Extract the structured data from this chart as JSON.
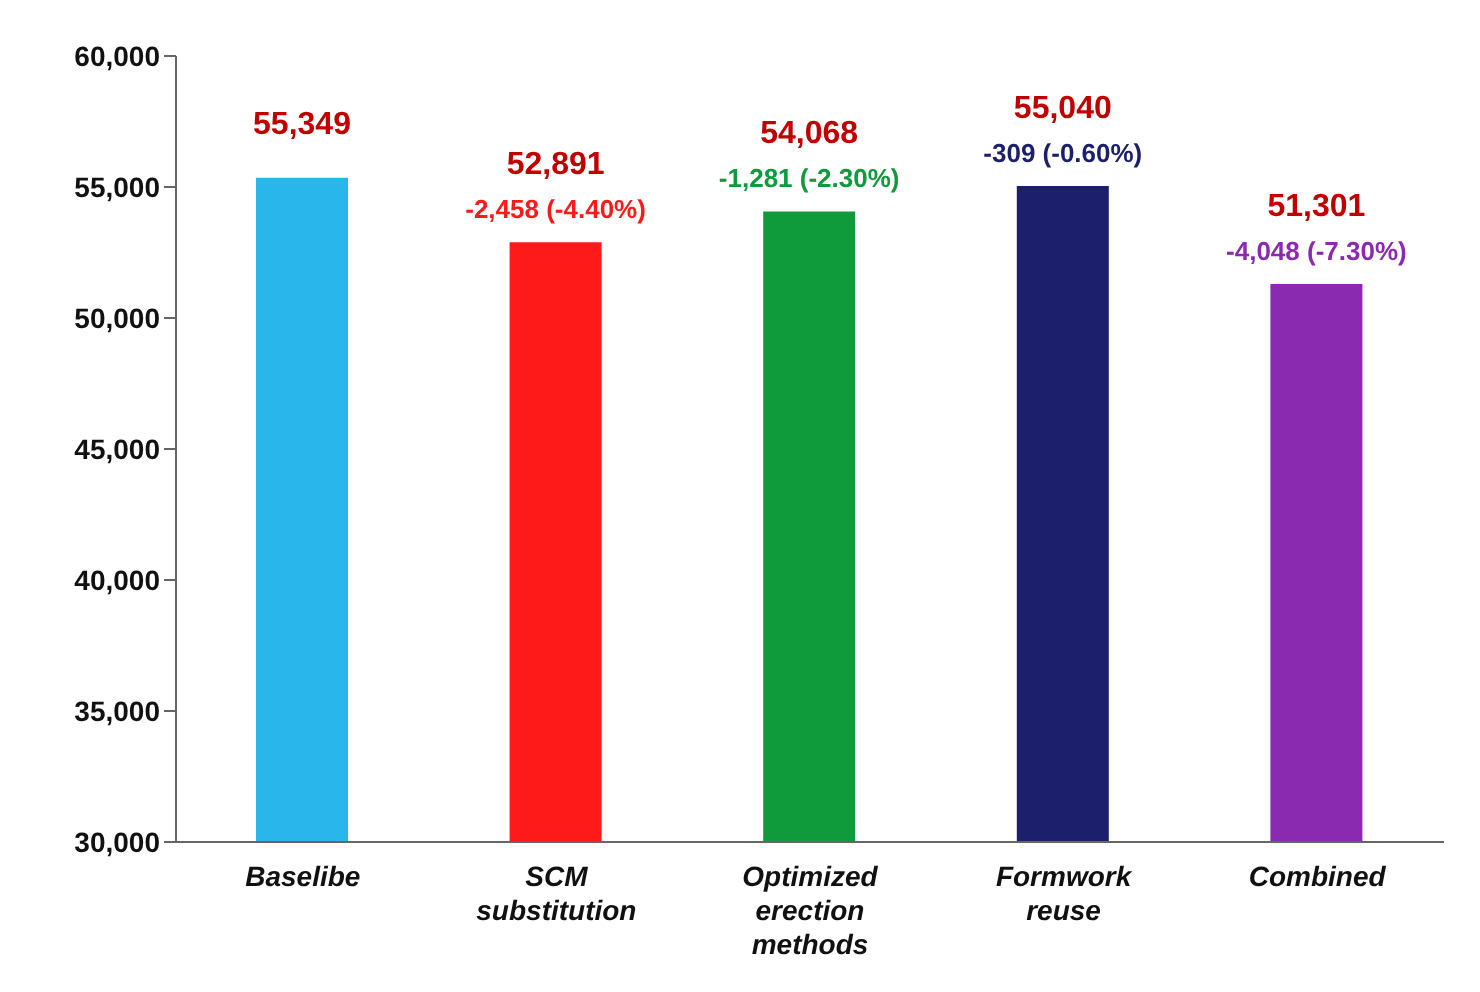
{
  "chart_data": {
    "type": "bar",
    "categories": [
      "Baselibe",
      "SCM substitution",
      "Optimized erection methods",
      "Formwork reuse",
      "Combined"
    ],
    "values": [
      55349,
      52891,
      54068,
      55040,
      51301
    ],
    "colors": [
      "#29b6ea",
      "#ff1a1a",
      "#0f9a3c",
      "#1c1f6b",
      "#8a2ab0"
    ],
    "ylim": [
      30000,
      60000
    ],
    "yticks": [
      {
        "value": 30000,
        "label": "30,000"
      },
      {
        "value": 35000,
        "label": "35,000"
      },
      {
        "value": 40000,
        "label": "40,000"
      },
      {
        "value": 45000,
        "label": "45,000"
      },
      {
        "value": 50000,
        "label": "50,000"
      },
      {
        "value": 55000,
        "label": "55,000"
      },
      {
        "value": 60000,
        "label": "60,000"
      }
    ],
    "grid": false,
    "value_labels": [
      "55,349",
      "52,891",
      "54,068",
      "55,040",
      "51,301"
    ],
    "annotations": [
      {
        "text": "-2,458 (-4.40%)",
        "x": "SCM substitution",
        "y": 52891
      },
      {
        "text": "-1,281 (-2.30%)",
        "x": "Optimized erection methods",
        "y": 54068
      },
      {
        "text": "-309 (-0.60%)",
        "x": "Formwork reuse",
        "y": 55040
      },
      {
        "text": "-4,048 (-7.30%)",
        "x": "Combined",
        "y": 51301
      }
    ]
  }
}
